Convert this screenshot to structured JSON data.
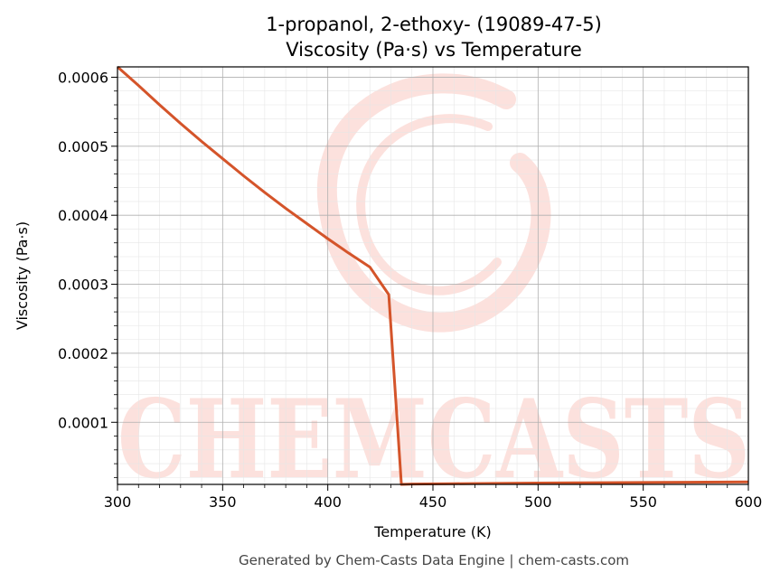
{
  "chart_data": {
    "type": "line",
    "title": "1-propanol, 2-ethoxy- (19089-47-5)",
    "subtitle": "Viscosity (Pa·s) vs Temperature",
    "xlabel": "Temperature (K)",
    "ylabel": "Viscosity (Pa·s)",
    "xlim": [
      300,
      600
    ],
    "ylim": [
      1e-05,
      0.000615
    ],
    "x_ticks": [
      300,
      350,
      400,
      450,
      500,
      550,
      600
    ],
    "x_tick_labels": [
      "300",
      "350",
      "400",
      "450",
      "500",
      "550",
      "600"
    ],
    "y_ticks": [
      0.0001,
      0.0002,
      0.0003,
      0.0004,
      0.0005,
      0.0006
    ],
    "y_tick_labels": [
      "0.0001",
      "0.0002",
      "0.0003",
      "0.0004",
      "0.0005",
      "0.0006"
    ],
    "grid": true,
    "line_color": "#d4542a",
    "series": [
      {
        "x": [
          300,
          310,
          320,
          330,
          340,
          350,
          360,
          370,
          380,
          390,
          400,
          410,
          420,
          429,
          435,
          440,
          460,
          480,
          500,
          520,
          540,
          560,
          580,
          600
        ],
        "values": [
          0.000615,
          0.000588,
          0.00056,
          0.000533,
          0.000507,
          0.000482,
          0.000457,
          0.000433,
          0.00041,
          0.000388,
          0.000366,
          0.000345,
          0.000325,
          0.000285,
          1e-05,
          1.05e-05,
          1.1e-05,
          1.15e-05,
          1.2e-05,
          1.23e-05,
          1.26e-05,
          1.3e-05,
          1.33e-05,
          1.36e-05
        ]
      }
    ]
  },
  "watermark": "CHEMCASTS",
  "footer": "Generated by Chem-Casts Data Engine | chem-casts.com"
}
